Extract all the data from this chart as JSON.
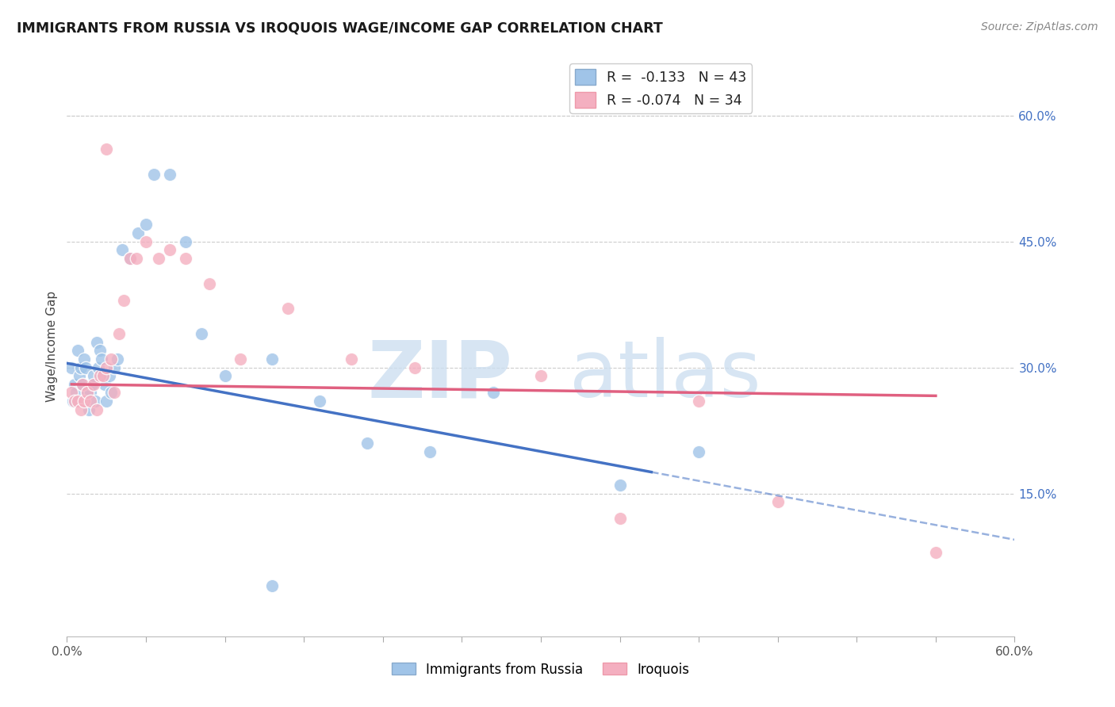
{
  "title": "IMMIGRANTS FROM RUSSIA VS IROQUOIS WAGE/INCOME GAP CORRELATION CHART",
  "source": "Source: ZipAtlas.com",
  "ylabel": "Wage/Income Gap",
  "xlim": [
    0.0,
    0.6
  ],
  "ylim": [
    -0.02,
    0.67
  ],
  "legend_blue_r": "-0.133",
  "legend_blue_n": "43",
  "legend_pink_r": "-0.074",
  "legend_pink_n": "34",
  "blue_color": "#a0c4e8",
  "pink_color": "#f4afc0",
  "blue_line_color": "#4472C4",
  "pink_line_color": "#E06080",
  "right_ytick_vals": [
    0.15,
    0.3,
    0.45,
    0.6
  ],
  "right_ytick_labels": [
    "15.0%",
    "30.0%",
    "45.0%",
    "60.0%"
  ],
  "grid_color": "#cccccc",
  "background_color": "#ffffff",
  "blue_x": [
    0.003,
    0.004,
    0.005,
    0.006,
    0.007,
    0.008,
    0.009,
    0.01,
    0.011,
    0.012,
    0.013,
    0.014,
    0.015,
    0.016,
    0.017,
    0.018,
    0.019,
    0.02,
    0.021,
    0.022,
    0.024,
    0.025,
    0.027,
    0.028,
    0.03,
    0.032,
    0.035,
    0.04,
    0.045,
    0.05,
    0.055,
    0.065,
    0.075,
    0.085,
    0.1,
    0.13,
    0.16,
    0.19,
    0.23,
    0.27,
    0.35,
    0.4,
    0.13
  ],
  "blue_y": [
    0.3,
    0.26,
    0.28,
    0.27,
    0.32,
    0.29,
    0.3,
    0.28,
    0.31,
    0.3,
    0.27,
    0.25,
    0.27,
    0.28,
    0.29,
    0.26,
    0.33,
    0.3,
    0.32,
    0.31,
    0.28,
    0.26,
    0.29,
    0.27,
    0.3,
    0.31,
    0.44,
    0.43,
    0.46,
    0.47,
    0.53,
    0.53,
    0.45,
    0.34,
    0.29,
    0.31,
    0.26,
    0.21,
    0.2,
    0.27,
    0.16,
    0.2,
    0.04
  ],
  "pink_x": [
    0.003,
    0.005,
    0.007,
    0.009,
    0.01,
    0.011,
    0.013,
    0.015,
    0.017,
    0.019,
    0.021,
    0.023,
    0.025,
    0.028,
    0.03,
    0.033,
    0.036,
    0.04,
    0.044,
    0.05,
    0.058,
    0.065,
    0.075,
    0.09,
    0.11,
    0.14,
    0.18,
    0.22,
    0.3,
    0.35,
    0.4,
    0.45,
    0.55,
    0.025
  ],
  "pink_y": [
    0.27,
    0.26,
    0.26,
    0.25,
    0.28,
    0.26,
    0.27,
    0.26,
    0.28,
    0.25,
    0.29,
    0.29,
    0.3,
    0.31,
    0.27,
    0.34,
    0.38,
    0.43,
    0.43,
    0.45,
    0.43,
    0.44,
    0.43,
    0.4,
    0.31,
    0.37,
    0.31,
    0.3,
    0.29,
    0.12,
    0.26,
    0.14,
    0.08,
    0.56
  ]
}
